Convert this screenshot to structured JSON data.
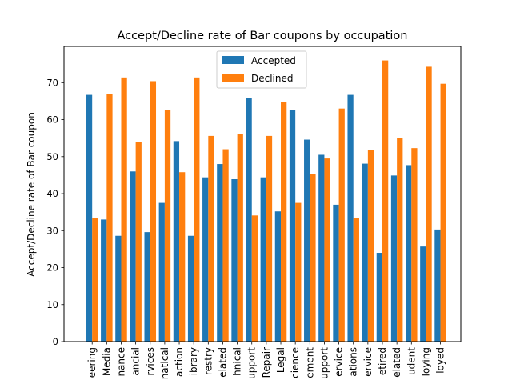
{
  "chart_data": {
    "type": "bar",
    "title": "Accept/Decline rate of Bar coupons by occupation",
    "xlabel": "",
    "ylabel": "Accept/Decline rate of Bar coupon",
    "ylim": [
      0,
      79.8
    ],
    "yticks": [
      0,
      10,
      20,
      30,
      40,
      50,
      60,
      70
    ],
    "grid": false,
    "legend_position": "top-center",
    "categories": [
      "eering",
      "Media",
      "nance",
      "ancial",
      "rvices",
      "natical",
      "action",
      "ibrary",
      "restry",
      "elated",
      "hnical",
      "upport",
      "Repair",
      "Legal",
      "cience",
      "ement",
      "upport",
      "ervice",
      "ations",
      "ervice",
      "etired",
      "elated",
      "udent",
      "loying",
      "loyed"
    ],
    "series": [
      {
        "name": "Accepted",
        "color": "#1f77b4",
        "values": [
          66.7,
          33.0,
          28.6,
          46.0,
          29.6,
          37.5,
          54.2,
          28.6,
          44.4,
          48.0,
          43.9,
          65.9,
          44.4,
          35.2,
          62.5,
          54.6,
          50.5,
          37.0,
          66.7,
          48.1,
          24.0,
          44.9,
          47.7,
          25.7,
          30.3
        ]
      },
      {
        "name": "Declined",
        "color": "#ff7f0e",
        "values": [
          33.3,
          67.0,
          71.4,
          54.0,
          70.4,
          62.5,
          45.8,
          71.4,
          55.6,
          52.0,
          56.1,
          34.1,
          55.6,
          64.8,
          37.5,
          45.4,
          49.5,
          63.0,
          33.3,
          51.9,
          76.0,
          55.1,
          52.3,
          74.3,
          69.7
        ]
      }
    ]
  }
}
